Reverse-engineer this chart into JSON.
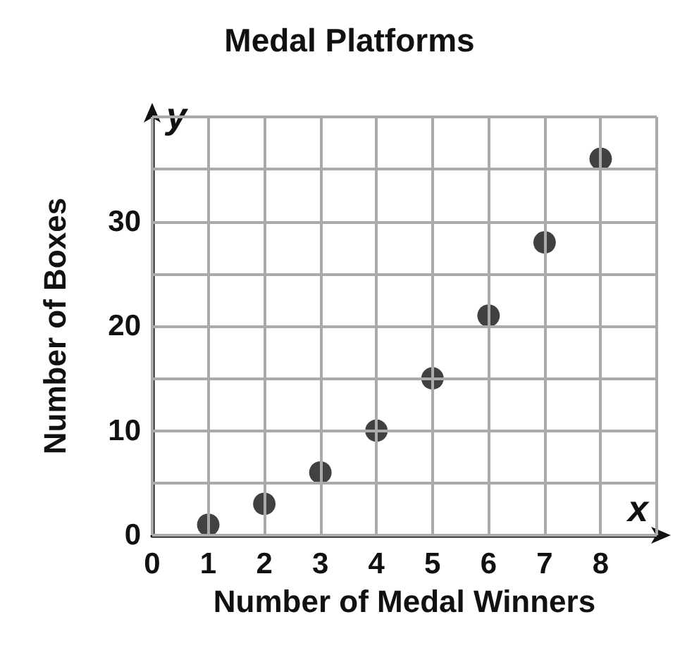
{
  "chart_data": {
    "type": "scatter",
    "title": "Medal Platforms",
    "xlabel": "Number of Medal Winners",
    "ylabel": "Number of Boxes",
    "annotations": [
      "x",
      "y"
    ],
    "x": [
      1,
      2,
      3,
      4,
      5,
      6,
      7,
      8
    ],
    "values": [
      1,
      3,
      6,
      10,
      15,
      21,
      28,
      36
    ],
    "color": "#111111",
    "marker": "circle",
    "grid": true,
    "xlim": [
      0,
      9
    ],
    "xticks": [
      0,
      1,
      2,
      3,
      4,
      5,
      6,
      7,
      8,
      {
        "value": 9,
        "label": null
      }
    ],
    "ylim": [
      0,
      40
    ],
    "yticks": [
      0,
      {
        "value": 5,
        "label": null
      },
      10,
      {
        "value": 15,
        "label": null
      },
      20,
      {
        "value": 25,
        "label": null
      },
      30,
      {
        "value": 35,
        "label": null
      },
      {
        "value": 40,
        "label": null
      }
    ]
  }
}
